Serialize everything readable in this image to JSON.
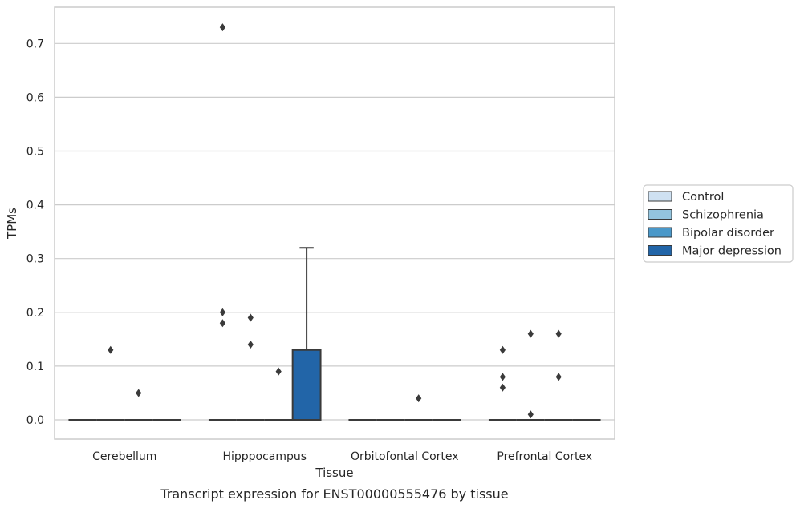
{
  "chart_data": {
    "type": "box",
    "title": "",
    "caption": "Transcript expression for ENST00000555476 by tissue",
    "xlabel": "Tissue",
    "ylabel": "TPMs",
    "ylim": [
      -0.035,
      0.76
    ],
    "yticks": [
      0.0,
      0.1,
      0.2,
      0.3,
      0.4,
      0.5,
      0.6,
      0.7
    ],
    "ytick_labels": [
      "0.0",
      "0.1",
      "0.2",
      "0.3",
      "0.4",
      "0.5",
      "0.6",
      "0.7"
    ],
    "grid": "horizontal",
    "legend_position": "outside-right",
    "categories": [
      "Cerebellum",
      "Hipppocampus",
      "Orbitofontal Cortex",
      "Prefrontal Cortex"
    ],
    "series": [
      {
        "name": "Control",
        "color": "#cfe1f2",
        "boxes": [
          {
            "q1": 0,
            "median": 0,
            "q3": 0,
            "whisker_low": 0,
            "whisker_high": 0,
            "outliers": []
          },
          {
            "q1": 0,
            "median": 0,
            "q3": 0,
            "whisker_low": 0,
            "whisker_high": 0,
            "outliers": [
              0.18,
              0.2,
              0.73
            ]
          },
          {
            "q1": 0,
            "median": 0,
            "q3": 0,
            "whisker_low": 0,
            "whisker_high": 0,
            "outliers": []
          },
          {
            "q1": 0,
            "median": 0,
            "q3": 0,
            "whisker_low": 0,
            "whisker_high": 0,
            "outliers": [
              0.06,
              0.08,
              0.13
            ]
          }
        ]
      },
      {
        "name": "Schizophrenia",
        "color": "#93c4de",
        "boxes": [
          {
            "q1": 0,
            "median": 0,
            "q3": 0,
            "whisker_low": 0,
            "whisker_high": 0,
            "outliers": [
              0.13
            ]
          },
          {
            "q1": 0,
            "median": 0,
            "q3": 0,
            "whisker_low": 0,
            "whisker_high": 0,
            "outliers": [
              0.14,
              0.19
            ]
          },
          {
            "q1": 0,
            "median": 0,
            "q3": 0,
            "whisker_low": 0,
            "whisker_high": 0,
            "outliers": []
          },
          {
            "q1": 0,
            "median": 0,
            "q3": 0,
            "whisker_low": 0,
            "whisker_high": 0,
            "outliers": [
              0.01,
              0.16
            ]
          }
        ]
      },
      {
        "name": "Bipolar disorder",
        "color": "#4a98c9",
        "boxes": [
          {
            "q1": 0,
            "median": 0,
            "q3": 0,
            "whisker_low": 0,
            "whisker_high": 0,
            "outliers": [
              0.05
            ]
          },
          {
            "q1": 0,
            "median": 0,
            "q3": 0,
            "whisker_low": 0,
            "whisker_high": 0,
            "outliers": [
              0.09
            ]
          },
          {
            "q1": 0,
            "median": 0,
            "q3": 0,
            "whisker_low": 0,
            "whisker_high": 0,
            "outliers": [
              0.04
            ]
          },
          {
            "q1": 0,
            "median": 0,
            "q3": 0,
            "whisker_low": 0,
            "whisker_high": 0,
            "outliers": [
              0.08,
              0.16
            ]
          }
        ]
      },
      {
        "name": "Major depression",
        "color": "#2265a8",
        "boxes": [
          {
            "q1": 0,
            "median": 0,
            "q3": 0,
            "whisker_low": 0,
            "whisker_high": 0,
            "outliers": []
          },
          {
            "q1": 0,
            "median": 0,
            "q3": 0.13,
            "whisker_low": 0,
            "whisker_high": 0.32,
            "outliers": []
          },
          {
            "q1": 0,
            "median": 0,
            "q3": 0,
            "whisker_low": 0,
            "whisker_high": 0,
            "outliers": []
          },
          {
            "q1": 0,
            "median": 0,
            "q3": 0,
            "whisker_low": 0,
            "whisker_high": 0,
            "outliers": []
          }
        ]
      }
    ]
  }
}
